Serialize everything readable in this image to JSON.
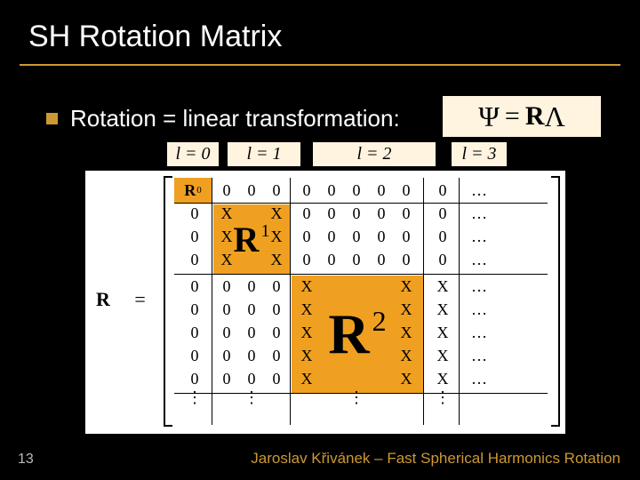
{
  "title": "SH Rotation Matrix",
  "bullet": {
    "text": "Rotation = linear transformation:"
  },
  "equation": {
    "psi": "Ψ",
    "eq": "=",
    "R": "R",
    "lambda": "Λ"
  },
  "band_labels": {
    "l0": "l = 0",
    "l1": "l = 1",
    "l2": "l = 2",
    "l3": "l = 3"
  },
  "matrix": {
    "lhs_R": "R",
    "lhs_eq": "=",
    "R0_label": "R",
    "R0_sup": "0",
    "R1_label": "R",
    "R1_sup": "1",
    "R2_label": "R",
    "R2_sup": "2",
    "zero": "0",
    "X": "X",
    "hdots": "…",
    "vdots": "⋮"
  },
  "page_number": "13",
  "footer": "Jaroslav Křivánek – Fast Spherical Harmonics Rotation",
  "colors": {
    "background": "#000000",
    "accent": "#cc9933",
    "block": "#f0a020",
    "eqn_bg": "#fff4e0",
    "matrix_bg": "#ffffff",
    "text_light": "#ffffff",
    "text_dark": "#000000",
    "page_num": "#bbbbbb"
  },
  "layout": {
    "slide_w": 720,
    "slide_h": 540,
    "rows": 9,
    "cols_zero_band": 1,
    "cols_R1_band": 3,
    "cols_R2_band": 5
  }
}
